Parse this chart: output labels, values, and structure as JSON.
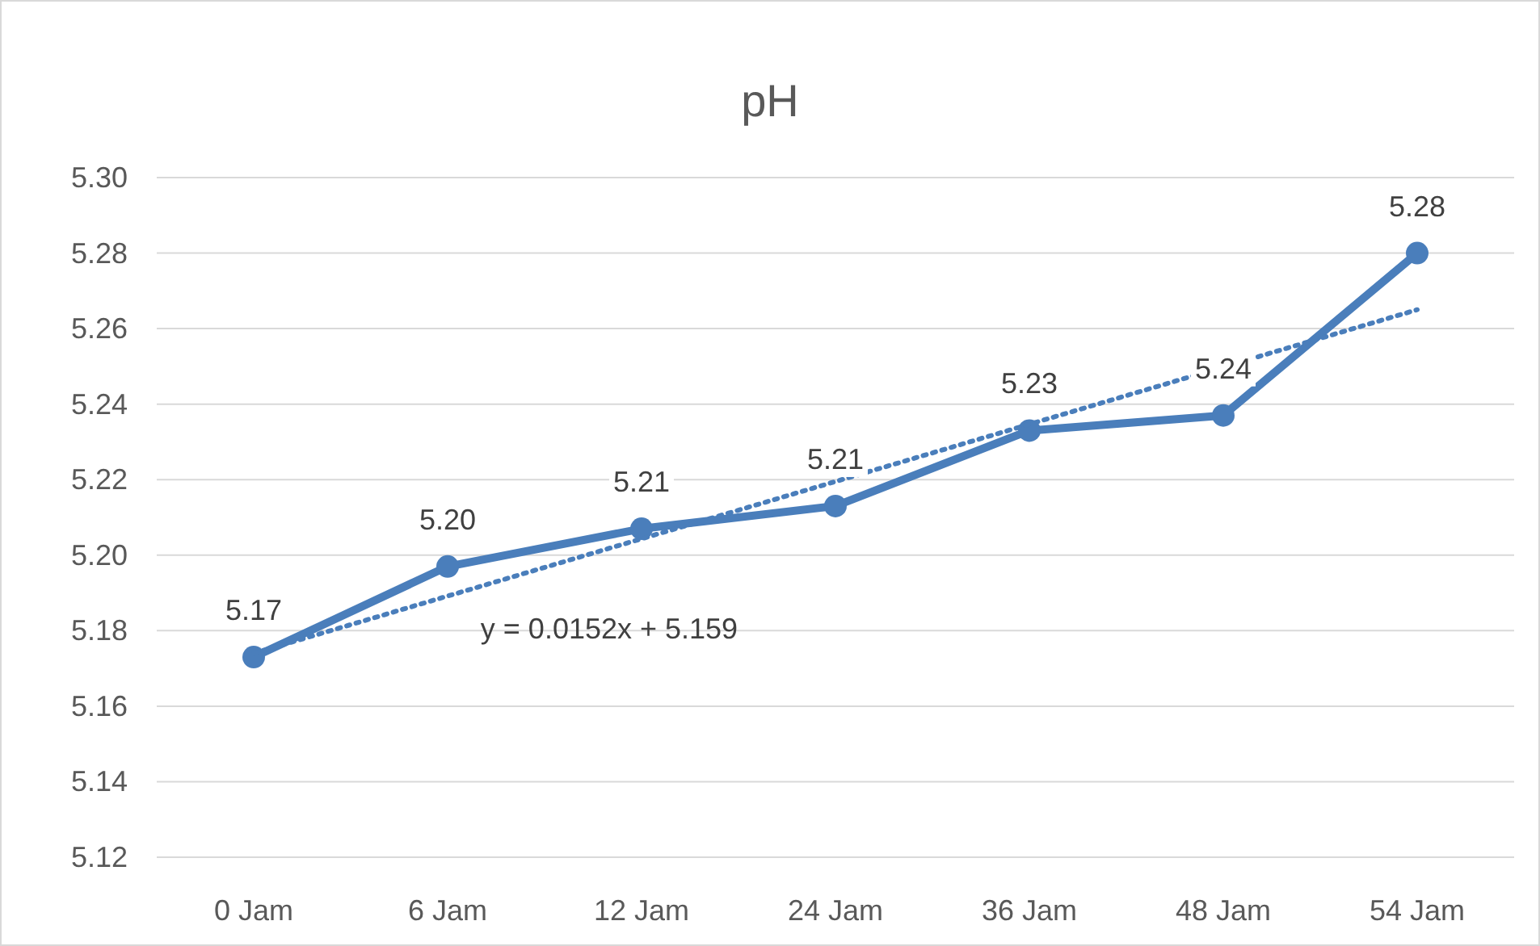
{
  "chart_data": {
    "type": "line",
    "title": "pH",
    "categories": [
      "0 Jam",
      "6 Jam",
      "12 Jam",
      "24 Jam",
      "36 Jam",
      "48 Jam",
      "54 Jam"
    ],
    "series": [
      {
        "color": "#4a7ebb",
        "values": [
          5.173,
          5.197,
          5.207,
          5.213,
          5.233,
          5.237,
          5.28
        ],
        "value_labels": [
          "5.17",
          "5.20",
          "5.21",
          "5.21",
          "5.23",
          "5.24",
          "5.28"
        ],
        "marker": "circle",
        "line_style": "solid"
      },
      {
        "type": "line",
        "color": "#4a7ebb",
        "x": [
          "0 Jam",
          "54 Jam"
        ],
        "values": [
          5.174,
          5.265
        ],
        "marker": "none",
        "line_style": "dotted"
      }
    ],
    "ylim": [
      5.12,
      5.3
    ],
    "yticks": [
      {
        "value": 5.12,
        "label": "5.12"
      },
      {
        "value": 5.14,
        "label": "5.14"
      },
      {
        "value": 5.16,
        "label": "5.16"
      },
      {
        "value": 5.18,
        "label": "5.18"
      },
      {
        "value": 5.2,
        "label": "5.20"
      },
      {
        "value": 5.22,
        "label": "5.22"
      },
      {
        "value": 5.24,
        "label": "5.24"
      },
      {
        "value": 5.26,
        "label": "5.26"
      },
      {
        "value": 5.28,
        "label": "5.28"
      },
      {
        "value": 5.3,
        "label": "5.30"
      }
    ],
    "grid": "y",
    "annotations": [
      "y = 0.0152x + 5.159"
    ]
  }
}
